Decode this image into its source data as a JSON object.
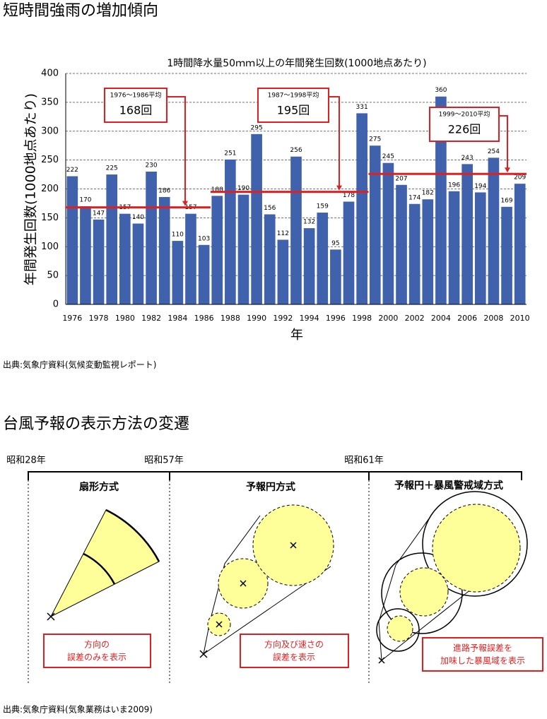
{
  "header": {
    "title": "短時間強雨の増加傾向"
  },
  "chart_data": {
    "type": "bar",
    "title": "1時間降水量50ｍｍ以上の年間発生回数(1000地点あたり)",
    "y_label": "年間発生回数(1000地点あたり)",
    "x_label": "年",
    "x": [
      1976,
      1977,
      1978,
      1979,
      1980,
      1981,
      1982,
      1983,
      1984,
      1985,
      1986,
      1987,
      1988,
      1989,
      1990,
      1991,
      1992,
      1993,
      1994,
      1995,
      1996,
      1997,
      1998,
      1999,
      2000,
      2001,
      2002,
      2003,
      2004,
      2005,
      2006,
      2007,
      2008,
      2009,
      2010
    ],
    "values": [
      222,
      170,
      147,
      225,
      157,
      140,
      230,
      186,
      110,
      157,
      103,
      188,
      251,
      190,
      295,
      156,
      112,
      256,
      132,
      159,
      95,
      178,
      331,
      275,
      245,
      207,
      174,
      182,
      360,
      196,
      243,
      194,
      254,
      169,
      209
    ],
    "color": "#4062ad",
    "xlim": [
      1975.5,
      2010.5
    ],
    "xticks": [
      1976,
      1978,
      1980,
      1982,
      1984,
      1986,
      1988,
      1990,
      1992,
      1994,
      1996,
      1998,
      2000,
      2002,
      2004,
      2006,
      2008,
      2010
    ],
    "ylim": [
      0,
      400
    ],
    "yticks": [
      0,
      50,
      100,
      150,
      200,
      250,
      300,
      350,
      400
    ],
    "grid": true,
    "averages": [
      {
        "label": "1976～1986平均",
        "value": 168,
        "value_label": "168回",
        "start": 1976,
        "end": 1986,
        "color": "#e02020"
      },
      {
        "label": "1987～1998平均",
        "value": 195,
        "value_label": "195回",
        "start": 1987,
        "end": 1998,
        "color": "#e02020"
      },
      {
        "label": "1999～2010平均",
        "value": 226,
        "value_label": "226回",
        "start": 1999,
        "end": 2010,
        "color": "#e02020"
      }
    ]
  },
  "chart_source": "出典:気象庁資料(気候変動監視レポート)",
  "typhoon": {
    "title": "台風予報の表示方法の変遷",
    "eras": [
      "昭和28年",
      "昭和57年",
      "昭和61年"
    ],
    "methods": [
      {
        "title": "扇形方式",
        "caption": [
          "方向の",
          "誤差のみを表示"
        ]
      },
      {
        "title": "予報円方式",
        "caption": [
          "方向及び速さの",
          "誤差を表示"
        ]
      },
      {
        "title": "予報円＋暴風警戒域方式",
        "caption": [
          "進路予報誤差を",
          "加味した暴風域を表示"
        ]
      }
    ],
    "source": "出典:気象庁資料(気象業務はいま2009)"
  }
}
